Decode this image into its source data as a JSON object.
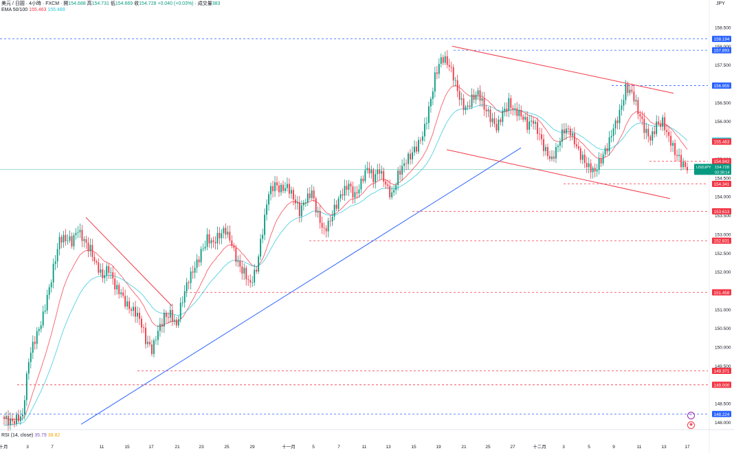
{
  "header": {
    "symbol_desc": "美元 / 日圓",
    "interval": "4小時",
    "source": "FXCM",
    "open_label": "開",
    "open": "154.688",
    "high_label": "高",
    "high": "154.731",
    "low_label": "低",
    "low": "154.669",
    "close_label": "收",
    "close": "154.728",
    "change": "+0.040 (+0.03%)",
    "volume_label": "成交量",
    "volume": "383",
    "ema_label": "EMA 50/100",
    "ema50_value": "155.463",
    "ema100_value": "155.489",
    "rsi_label": "RSI (14, close)",
    "rsi_value": "35.79",
    "rsi_ma_value": "38.82"
  },
  "currency": "JPY",
  "price_axis": {
    "ticks": [
      "158.500",
      "158.000",
      "157.500",
      "157.000",
      "156.500",
      "156.000",
      "155.500",
      "155.000",
      "154.500",
      "154.000",
      "153.500",
      "153.000",
      "152.500",
      "152.000",
      "151.500",
      "151.000",
      "150.500",
      "150.000",
      "149.500",
      "149.000",
      "148.500",
      "148.000"
    ]
  },
  "time_axis": {
    "labels": [
      "十月",
      "3",
      "7",
      "11",
      "15",
      "17",
      "21",
      "23",
      "25",
      "29",
      "十一月",
      "5",
      "7",
      "11",
      "13",
      "15",
      "19",
      "21",
      "25",
      "27",
      "十二月",
      "3",
      "5",
      "9",
      "11",
      "13",
      "17"
    ]
  },
  "current_price": {
    "symbol": "USDJPY",
    "price": "154.728",
    "countdown": "03:38:14"
  },
  "levels": [
    {
      "price": 158.194,
      "label": "158.194",
      "style": "blue"
    },
    {
      "price": 157.893,
      "label": "157.893",
      "style": "blue"
    },
    {
      "price": 156.955,
      "label": "156.955",
      "style": "blue"
    },
    {
      "price": 154.942,
      "label": "154.942",
      "style": "red"
    },
    {
      "price": 154.341,
      "label": "154.341",
      "style": "red"
    },
    {
      "price": 153.613,
      "label": "153.613",
      "style": "red"
    },
    {
      "price": 152.831,
      "label": "152.831",
      "style": "red"
    },
    {
      "price": 151.458,
      "label": "151.458",
      "style": "red"
    },
    {
      "price": 149.371,
      "label": "149.371",
      "style": "red"
    },
    {
      "price": 149.0,
      "label": "149.000",
      "style": "red"
    },
    {
      "price": 148.224,
      "label": "148.224",
      "style": "blue"
    }
  ],
  "ema_badges": [
    {
      "price": 155.489,
      "label": "155.489",
      "color": "#26c6da"
    },
    {
      "price": 155.463,
      "label": "155.463",
      "color": "#f23645"
    }
  ],
  "colors": {
    "up": "#089981",
    "down": "#f23645",
    "ema50": "#f23645",
    "ema100": "#26c6da",
    "uptrend": "#2962ff",
    "channel": "#f23645",
    "level_blue": "#2962ff",
    "level_red": "#f23645"
  },
  "icons": [
    "lightning-icon",
    "alert-icon"
  ],
  "chart_data": {
    "type": "candlestick",
    "symbol": "USDJPY",
    "interval": "4小時",
    "ylim": [
      147.9,
      158.9
    ],
    "series": [
      {
        "name": "EMA 50/100",
        "values": "see candles"
      }
    ],
    "x": [
      "十月",
      "3",
      "7",
      "11",
      "15",
      "17",
      "21",
      "23",
      "25",
      "29",
      "十一月",
      "5",
      "7",
      "11",
      "13",
      "15",
      "19",
      "21",
      "25",
      "27",
      "十二月",
      "3",
      "5",
      "9",
      "11",
      "13",
      "17"
    ],
    "closes": [
      148.1,
      148.0,
      148.1,
      148.2,
      149.7,
      150.2,
      150.6,
      151.3,
      152.1,
      152.9,
      152.9,
      152.8,
      153.1,
      152.8,
      152.6,
      152.2,
      151.9,
      152.1,
      151.6,
      151.4,
      151.1,
      151.0,
      150.8,
      150.2,
      149.9,
      150.4,
      150.8,
      150.9,
      150.6,
      151.3,
      151.8,
      152.1,
      152.5,
      152.9,
      152.8,
      153.0,
      153.1,
      152.7,
      152.2,
      152.0,
      151.7,
      152.1,
      153.1,
      154.1,
      154.3,
      154.2,
      154.3,
      154.0,
      153.6,
      153.9,
      154.1,
      153.5,
      153.1,
      153.4,
      153.8,
      154.1,
      154.3,
      154.0,
      154.4,
      154.8,
      154.5,
      154.7,
      154.3,
      154.0,
      154.6,
      154.9,
      155.1,
      155.3,
      155.6,
      156.3,
      157.2,
      157.7,
      157.6,
      157.2,
      156.6,
      156.3,
      156.6,
      156.8,
      156.4,
      156.1,
      155.8,
      156.2,
      156.5,
      156.3,
      156.2,
      155.9,
      156.0,
      155.6,
      155.2,
      155.0,
      155.4,
      155.8,
      155.7,
      155.3,
      155.0,
      154.8,
      154.7,
      155.0,
      155.3,
      155.8,
      156.2,
      156.9,
      156.8,
      156.3,
      155.8,
      155.5,
      155.9,
      156.0,
      155.6,
      155.2,
      154.9,
      154.7
    ]
  }
}
